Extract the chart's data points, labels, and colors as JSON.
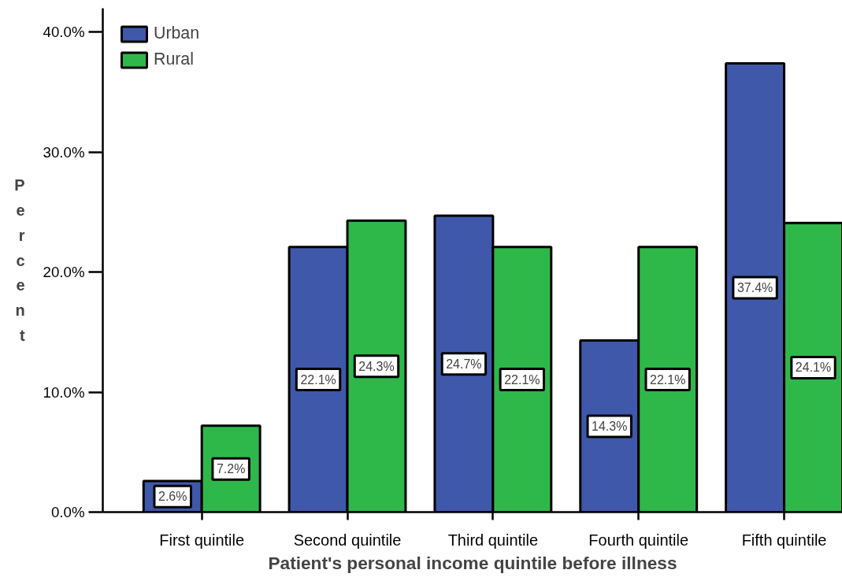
{
  "chart_data": {
    "type": "bar",
    "xlabel": "Patient's personal income quintile before illness",
    "ylabel": "Percent",
    "categories": [
      "First quintile",
      "Second quintile",
      "Third quintile",
      "Fourth quintile",
      "Fifth quintile"
    ],
    "series": [
      {
        "name": "Urban",
        "color": "#3f58aa",
        "values": [
          2.6,
          22.1,
          24.7,
          14.3,
          37.4
        ],
        "value_labels": [
          "2.6%",
          "22.1%",
          "24.7%",
          "14.3%",
          "37.4%"
        ]
      },
      {
        "name": "Rural",
        "color": "#2fb84a",
        "values": [
          7.2,
          24.3,
          22.1,
          22.1,
          24.1
        ],
        "value_labels": [
          "7.2%",
          "24.3%",
          "22.1%",
          "22.1%",
          "24.1%"
        ]
      }
    ],
    "ylim": [
      0,
      42
    ],
    "yticks": [
      {
        "value": 0,
        "label": "0.0%"
      },
      {
        "value": 10,
        "label": "10.0%"
      },
      {
        "value": 20,
        "label": "20.0%"
      },
      {
        "value": 30,
        "label": "30.0%"
      },
      {
        "value": 40,
        "label": "40.0%"
      }
    ],
    "grid": false,
    "legend": "top left"
  }
}
